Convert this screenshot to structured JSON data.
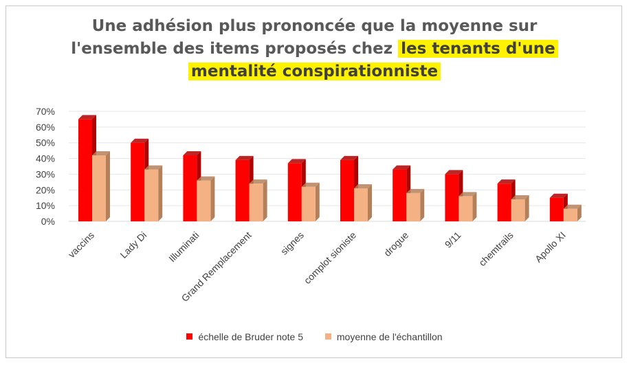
{
  "title": {
    "line1": "Une adhésion plus prononcée que la moyenne sur",
    "line2_plain": "l'ensemble des items proposés chez ",
    "line2_highlight": "les tenants d'une",
    "line3_highlight": "mentalité conspirationniste"
  },
  "colors": {
    "series1": "#ff0000",
    "series1_side": "#b00000",
    "series2": "#f4b183",
    "series2_side": "#b4805a",
    "highlight": "#fff200",
    "grid": "#e6e6e6",
    "text": "#404040"
  },
  "chart_data": {
    "type": "bar",
    "categories": [
      "vaccins",
      "Lady Di",
      "Illuminati",
      "Grand Remplacement",
      "signes",
      "complot sioniste",
      "drogue",
      "9/11",
      "chemtrails",
      "Apollo XI"
    ],
    "series": [
      {
        "name": "échelle de Bruder note 5",
        "values": [
          65,
          50,
          42,
          39,
          37,
          39,
          33,
          30,
          24,
          15
        ]
      },
      {
        "name": "moyenne de l'échantillon",
        "values": [
          42,
          33,
          26,
          24,
          22,
          21,
          18,
          16,
          14,
          8
        ]
      }
    ],
    "y_ticks": [
      "0%",
      "10%",
      "20%",
      "30%",
      "40%",
      "50%",
      "60%",
      "70%"
    ],
    "ylim": [
      0,
      70
    ],
    "grid": true,
    "legend_position": "bottom"
  }
}
